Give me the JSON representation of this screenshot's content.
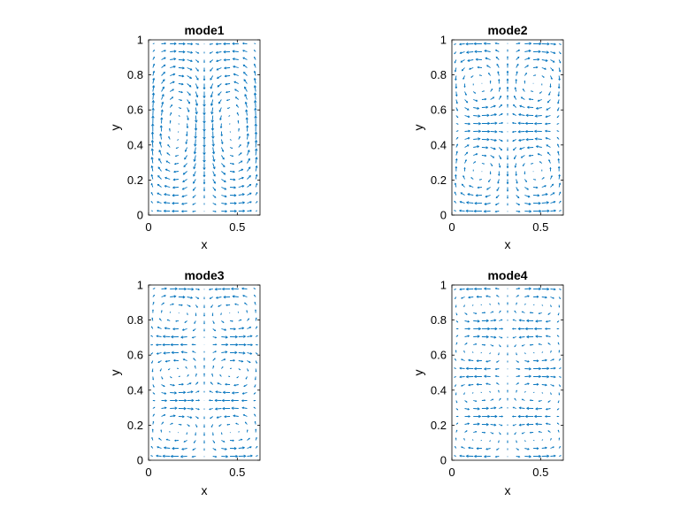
{
  "figure": {
    "vector_color": "#0072BD",
    "axes_color": "#000000",
    "background": "#ffffff"
  },
  "chart_data": [
    {
      "type": "quiver",
      "title": "mode1",
      "xlabel": "x",
      "ylabel": "y",
      "xlim": [
        0,
        0.628
      ],
      "ylim": [
        0,
        1
      ],
      "xticks": [
        "0",
        "0.5"
      ],
      "yticks": [
        "0",
        "0.2",
        "0.4",
        "0.6",
        "0.8",
        "1"
      ],
      "grid": false,
      "field": {
        "nx": 13,
        "ny": 22,
        "kx": 1,
        "ky": 1
      }
    },
    {
      "type": "quiver",
      "title": "mode2",
      "xlabel": "x",
      "ylabel": "y",
      "xlim": [
        0,
        0.628
      ],
      "ylim": [
        0,
        1
      ],
      "xticks": [
        "0",
        "0.5"
      ],
      "yticks": [
        "0",
        "0.2",
        "0.4",
        "0.6",
        "0.8",
        "1"
      ],
      "grid": false,
      "field": {
        "nx": 13,
        "ny": 22,
        "kx": 1,
        "ky": 2
      }
    },
    {
      "type": "quiver",
      "title": "mode3",
      "xlabel": "x",
      "ylabel": "y",
      "xlim": [
        0,
        0.628
      ],
      "ylim": [
        0,
        1
      ],
      "xticks": [
        "0",
        "0.5"
      ],
      "yticks": [
        "0",
        "0.2",
        "0.4",
        "0.6",
        "0.8",
        "1"
      ],
      "grid": false,
      "field": {
        "nx": 13,
        "ny": 22,
        "kx": 1,
        "ky": 3
      }
    },
    {
      "type": "quiver",
      "title": "mode4",
      "xlabel": "x",
      "ylabel": "y",
      "xlim": [
        0,
        0.628
      ],
      "ylim": [
        0,
        1
      ],
      "xticks": [
        "0",
        "0.5"
      ],
      "yticks": [
        "0",
        "0.2",
        "0.4",
        "0.6",
        "0.8",
        "1"
      ],
      "grid": false,
      "field": {
        "nx": 13,
        "ny": 22,
        "kx": 1,
        "ky": 4
      }
    }
  ]
}
